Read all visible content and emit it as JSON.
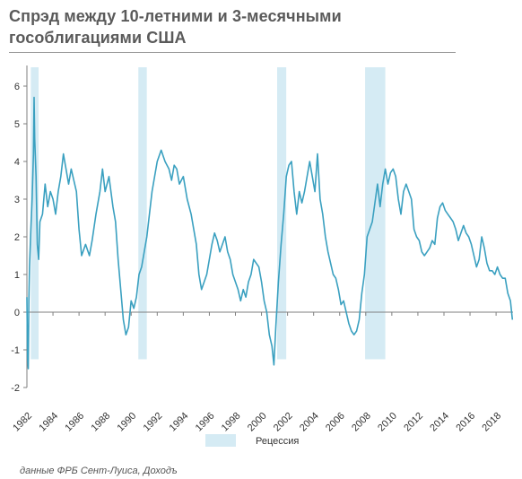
{
  "title_line1": "Спрэд между 10-летними и 3-месячными",
  "title_line2": "гособлигациями США",
  "source": "данные ФРБ Сент-Луиса, Доходъ",
  "colors": {
    "series": "#3aa0c0",
    "recession": "#d5ebf4",
    "axis": "#7f7f7f",
    "title": "#5a5a5a"
  },
  "chart_data": {
    "type": "line",
    "title": "Спрэд между 10-летними и 3-месячными гособлигациями США",
    "xlabel": "",
    "ylabel": "",
    "xlim": [
      1982,
      2019.3
    ],
    "ylim": [
      -2,
      6.5
    ],
    "x_ticks": [
      "1982",
      "1984",
      "1986",
      "1988",
      "1990",
      "1992",
      "1994",
      "1996",
      "1998",
      "2000",
      "2002",
      "2004",
      "2006",
      "2008",
      "2010",
      "2012",
      "2014",
      "2016",
      "2018"
    ],
    "y_ticks": [
      "-2",
      "-1",
      "0",
      "1",
      "2",
      "3",
      "4",
      "5",
      "6"
    ],
    "legend": {
      "label": "Рецессия",
      "position": "bottom"
    },
    "grid": false,
    "recessions": [
      {
        "start": 1982.3,
        "end": 1982.9
      },
      {
        "start": 1990.55,
        "end": 1991.2
      },
      {
        "start": 2001.2,
        "end": 2001.9
      },
      {
        "start": 2007.95,
        "end": 2009.5
      }
    ],
    "series": [
      {
        "values": [
          [
            1982.0,
            0.4
          ],
          [
            1982.05,
            -1.2
          ],
          [
            1982.1,
            -1.5
          ],
          [
            1982.15,
            0.3
          ],
          [
            1982.2,
            1.2
          ],
          [
            1982.3,
            2.2
          ],
          [
            1982.4,
            3.0
          ],
          [
            1982.5,
            4.2
          ],
          [
            1982.55,
            5.7
          ],
          [
            1982.6,
            4.6
          ],
          [
            1982.7,
            3.6
          ],
          [
            1982.8,
            1.8
          ],
          [
            1982.9,
            1.4
          ],
          [
            1983.0,
            2.4
          ],
          [
            1983.2,
            2.6
          ],
          [
            1983.4,
            3.4
          ],
          [
            1983.6,
            2.8
          ],
          [
            1983.8,
            3.2
          ],
          [
            1984.0,
            3.0
          ],
          [
            1984.2,
            2.6
          ],
          [
            1984.4,
            3.2
          ],
          [
            1984.6,
            3.6
          ],
          [
            1984.8,
            4.2
          ],
          [
            1985.0,
            3.8
          ],
          [
            1985.2,
            3.4
          ],
          [
            1985.4,
            3.8
          ],
          [
            1985.6,
            3.5
          ],
          [
            1985.8,
            3.2
          ],
          [
            1986.0,
            2.2
          ],
          [
            1986.2,
            1.5
          ],
          [
            1986.5,
            1.8
          ],
          [
            1986.8,
            1.5
          ],
          [
            1987.0,
            1.9
          ],
          [
            1987.3,
            2.6
          ],
          [
            1987.6,
            3.2
          ],
          [
            1987.8,
            3.8
          ],
          [
            1988.0,
            3.2
          ],
          [
            1988.3,
            3.6
          ],
          [
            1988.6,
            2.8
          ],
          [
            1988.8,
            2.4
          ],
          [
            1989.0,
            1.4
          ],
          [
            1989.2,
            0.6
          ],
          [
            1989.4,
            -0.2
          ],
          [
            1989.6,
            -0.6
          ],
          [
            1989.8,
            -0.4
          ],
          [
            1990.0,
            0.3
          ],
          [
            1990.2,
            0.1
          ],
          [
            1990.4,
            0.4
          ],
          [
            1990.6,
            1.0
          ],
          [
            1990.8,
            1.2
          ],
          [
            1991.0,
            1.6
          ],
          [
            1991.2,
            2.0
          ],
          [
            1991.4,
            2.6
          ],
          [
            1991.6,
            3.2
          ],
          [
            1991.8,
            3.6
          ],
          [
            1992.0,
            4.0
          ],
          [
            1992.3,
            4.3
          ],
          [
            1992.6,
            4.0
          ],
          [
            1992.9,
            3.8
          ],
          [
            1993.1,
            3.5
          ],
          [
            1993.3,
            3.9
          ],
          [
            1993.5,
            3.8
          ],
          [
            1993.7,
            3.4
          ],
          [
            1994.0,
            3.6
          ],
          [
            1994.3,
            3.0
          ],
          [
            1994.6,
            2.6
          ],
          [
            1994.8,
            2.2
          ],
          [
            1995.0,
            1.8
          ],
          [
            1995.2,
            1.0
          ],
          [
            1995.4,
            0.6
          ],
          [
            1995.6,
            0.8
          ],
          [
            1995.8,
            1.0
          ],
          [
            1996.0,
            1.4
          ],
          [
            1996.2,
            1.8
          ],
          [
            1996.4,
            2.1
          ],
          [
            1996.6,
            1.9
          ],
          [
            1996.8,
            1.6
          ],
          [
            1997.0,
            1.8
          ],
          [
            1997.2,
            2.0
          ],
          [
            1997.4,
            1.6
          ],
          [
            1997.6,
            1.4
          ],
          [
            1997.8,
            1.0
          ],
          [
            1998.0,
            0.8
          ],
          [
            1998.2,
            0.6
          ],
          [
            1998.4,
            0.3
          ],
          [
            1998.6,
            0.6
          ],
          [
            1998.8,
            0.4
          ],
          [
            1999.0,
            0.8
          ],
          [
            1999.2,
            1.0
          ],
          [
            1999.4,
            1.4
          ],
          [
            1999.6,
            1.3
          ],
          [
            1999.8,
            1.2
          ],
          [
            2000.0,
            0.8
          ],
          [
            2000.2,
            0.3
          ],
          [
            2000.4,
            0.0
          ],
          [
            2000.6,
            -0.6
          ],
          [
            2000.8,
            -0.9
          ],
          [
            2000.95,
            -1.4
          ],
          [
            2001.1,
            -0.4
          ],
          [
            2001.3,
            0.8
          ],
          [
            2001.5,
            1.8
          ],
          [
            2001.7,
            2.6
          ],
          [
            2001.9,
            3.6
          ],
          [
            2002.1,
            3.9
          ],
          [
            2002.3,
            4.0
          ],
          [
            2002.5,
            3.2
          ],
          [
            2002.7,
            2.6
          ],
          [
            2002.9,
            3.2
          ],
          [
            2003.1,
            2.9
          ],
          [
            2003.3,
            3.2
          ],
          [
            2003.5,
            3.6
          ],
          [
            2003.7,
            4.0
          ],
          [
            2003.9,
            3.6
          ],
          [
            2004.1,
            3.2
          ],
          [
            2004.3,
            4.2
          ],
          [
            2004.5,
            3.0
          ],
          [
            2004.7,
            2.6
          ],
          [
            2004.9,
            2.0
          ],
          [
            2005.1,
            1.6
          ],
          [
            2005.3,
            1.3
          ],
          [
            2005.5,
            1.0
          ],
          [
            2005.7,
            0.9
          ],
          [
            2005.9,
            0.6
          ],
          [
            2006.1,
            0.2
          ],
          [
            2006.3,
            0.3
          ],
          [
            2006.5,
            0.0
          ],
          [
            2006.7,
            -0.3
          ],
          [
            2006.9,
            -0.5
          ],
          [
            2007.1,
            -0.6
          ],
          [
            2007.3,
            -0.5
          ],
          [
            2007.5,
            -0.2
          ],
          [
            2007.7,
            0.5
          ],
          [
            2007.9,
            1.0
          ],
          [
            2008.1,
            2.0
          ],
          [
            2008.3,
            2.2
          ],
          [
            2008.5,
            2.4
          ],
          [
            2008.7,
            2.9
          ],
          [
            2008.9,
            3.4
          ],
          [
            2009.1,
            2.8
          ],
          [
            2009.3,
            3.4
          ],
          [
            2009.5,
            3.8
          ],
          [
            2009.7,
            3.4
          ],
          [
            2009.9,
            3.7
          ],
          [
            2010.1,
            3.8
          ],
          [
            2010.3,
            3.6
          ],
          [
            2010.5,
            3.0
          ],
          [
            2010.7,
            2.6
          ],
          [
            2010.9,
            3.2
          ],
          [
            2011.1,
            3.4
          ],
          [
            2011.3,
            3.2
          ],
          [
            2011.5,
            3.0
          ],
          [
            2011.7,
            2.2
          ],
          [
            2011.9,
            2.0
          ],
          [
            2012.1,
            1.9
          ],
          [
            2012.3,
            1.6
          ],
          [
            2012.5,
            1.5
          ],
          [
            2012.7,
            1.6
          ],
          [
            2012.9,
            1.7
          ],
          [
            2013.1,
            1.9
          ],
          [
            2013.3,
            1.8
          ],
          [
            2013.5,
            2.5
          ],
          [
            2013.7,
            2.8
          ],
          [
            2013.9,
            2.9
          ],
          [
            2014.1,
            2.7
          ],
          [
            2014.3,
            2.6
          ],
          [
            2014.5,
            2.5
          ],
          [
            2014.7,
            2.4
          ],
          [
            2014.9,
            2.2
          ],
          [
            2015.1,
            1.9
          ],
          [
            2015.3,
            2.1
          ],
          [
            2015.5,
            2.3
          ],
          [
            2015.7,
            2.1
          ],
          [
            2015.9,
            2.0
          ],
          [
            2016.1,
            1.8
          ],
          [
            2016.3,
            1.5
          ],
          [
            2016.5,
            1.2
          ],
          [
            2016.7,
            1.4
          ],
          [
            2016.9,
            2.0
          ],
          [
            2017.1,
            1.7
          ],
          [
            2017.3,
            1.3
          ],
          [
            2017.5,
            1.1
          ],
          [
            2017.7,
            1.1
          ],
          [
            2017.9,
            1.0
          ],
          [
            2018.1,
            1.2
          ],
          [
            2018.3,
            1.0
          ],
          [
            2018.5,
            0.9
          ],
          [
            2018.7,
            0.9
          ],
          [
            2018.9,
            0.5
          ],
          [
            2019.1,
            0.3
          ],
          [
            2019.25,
            -0.2
          ]
        ]
      }
    ]
  }
}
